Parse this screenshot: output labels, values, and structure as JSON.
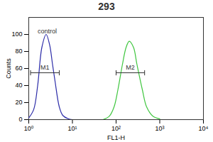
{
  "chart_data": {
    "type": "line",
    "title": "293",
    "x_label": "FL1-H",
    "y_label": "Counts",
    "log": "x",
    "xlim": [
      1,
      10000
    ],
    "xticks": [
      {
        "value": 1,
        "label": "10⁰"
      },
      {
        "value": 10,
        "label": "10¹"
      },
      {
        "value": 100,
        "label": "10²"
      },
      {
        "value": 1000,
        "label": "10³"
      },
      {
        "value": 10000,
        "label": "10⁴"
      }
    ],
    "ylim": [
      0,
      120
    ],
    "yticks": [
      0,
      20,
      40,
      60,
      80,
      100
    ],
    "series": [
      {
        "color": "#2b2ba8",
        "x": [
          1,
          1.3,
          1.6,
          2,
          2.5,
          3,
          3.5,
          4,
          5,
          6,
          8,
          10
        ],
        "values": [
          2,
          12,
          40,
          85,
          100,
          88,
          65,
          45,
          15,
          5,
          1,
          0
        ]
      },
      {
        "color": "#3fc63f",
        "x": [
          50,
          70,
          90,
          110,
          140,
          170,
          200,
          250,
          300,
          400,
          500,
          700,
          1000
        ],
        "values": [
          0,
          4,
          15,
          35,
          65,
          85,
          92,
          85,
          65,
          35,
          15,
          4,
          1
        ]
      }
    ],
    "gates": [
      {
        "label": "M1",
        "x": [
          1.1,
          5
        ],
        "y": 55
      },
      {
        "label": "M2",
        "x": [
          100,
          450
        ],
        "y": 55
      }
    ],
    "annotations": [
      {
        "text": "control",
        "x": 1.6,
        "y": 104
      }
    ]
  }
}
